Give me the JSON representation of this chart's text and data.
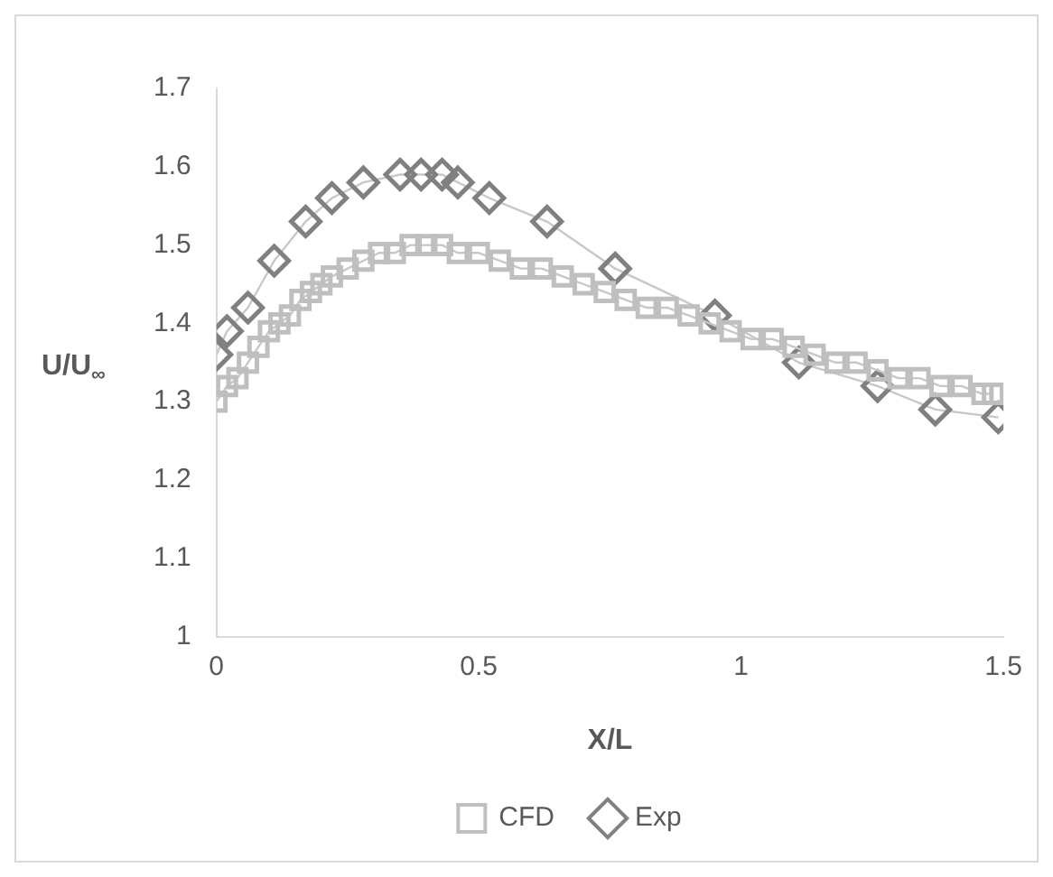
{
  "chart_data": {
    "type": "line",
    "xlabel": "X/L",
    "ylabel": "U/U$_{∞}$",
    "xlim": [
      0,
      1.5
    ],
    "xticks": [
      0,
      0.5,
      1,
      1.5
    ],
    "ylim": [
      1,
      1.7
    ],
    "yticks": [
      1,
      1.1,
      1.2,
      1.3,
      1.4,
      1.5,
      1.6,
      1.7
    ],
    "grid": false,
    "legend": "bottom",
    "series": [
      {
        "name": "CFD",
        "color": "#bfbfbf",
        "marker": "square",
        "x": [
          0,
          0.02,
          0.04,
          0.06,
          0.08,
          0.1,
          0.12,
          0.14,
          0.16,
          0.18,
          0.2,
          0.22,
          0.25,
          0.28,
          0.31,
          0.34,
          0.37,
          0.4,
          0.43,
          0.46,
          0.5,
          0.54,
          0.58,
          0.62,
          0.66,
          0.7,
          0.74,
          0.78,
          0.82,
          0.86,
          0.9,
          0.94,
          0.98,
          1.02,
          1.06,
          1.1,
          1.14,
          1.18,
          1.22,
          1.26,
          1.3,
          1.34,
          1.38,
          1.42,
          1.46,
          1.48
        ],
        "values": [
          1.3,
          1.32,
          1.33,
          1.35,
          1.37,
          1.39,
          1.4,
          1.41,
          1.43,
          1.44,
          1.45,
          1.46,
          1.47,
          1.48,
          1.49,
          1.49,
          1.5,
          1.5,
          1.5,
          1.49,
          1.49,
          1.48,
          1.47,
          1.47,
          1.46,
          1.45,
          1.44,
          1.43,
          1.42,
          1.42,
          1.41,
          1.4,
          1.39,
          1.38,
          1.38,
          1.37,
          1.36,
          1.35,
          1.35,
          1.34,
          1.33,
          1.33,
          1.32,
          1.32,
          1.31,
          1.31
        ]
      },
      {
        "name": "Exp",
        "color": "#808080",
        "marker": "diamond",
        "x": [
          0,
          0.02,
          0.06,
          0.11,
          0.17,
          0.22,
          0.28,
          0.35,
          0.39,
          0.43,
          0.46,
          0.52,
          0.63,
          0.76,
          0.95,
          1.11,
          1.26,
          1.37,
          1.49
        ],
        "values": [
          1.36,
          1.39,
          1.42,
          1.48,
          1.53,
          1.56,
          1.58,
          1.59,
          1.59,
          1.59,
          1.58,
          1.56,
          1.53,
          1.47,
          1.41,
          1.35,
          1.32,
          1.29,
          1.28
        ]
      }
    ]
  }
}
